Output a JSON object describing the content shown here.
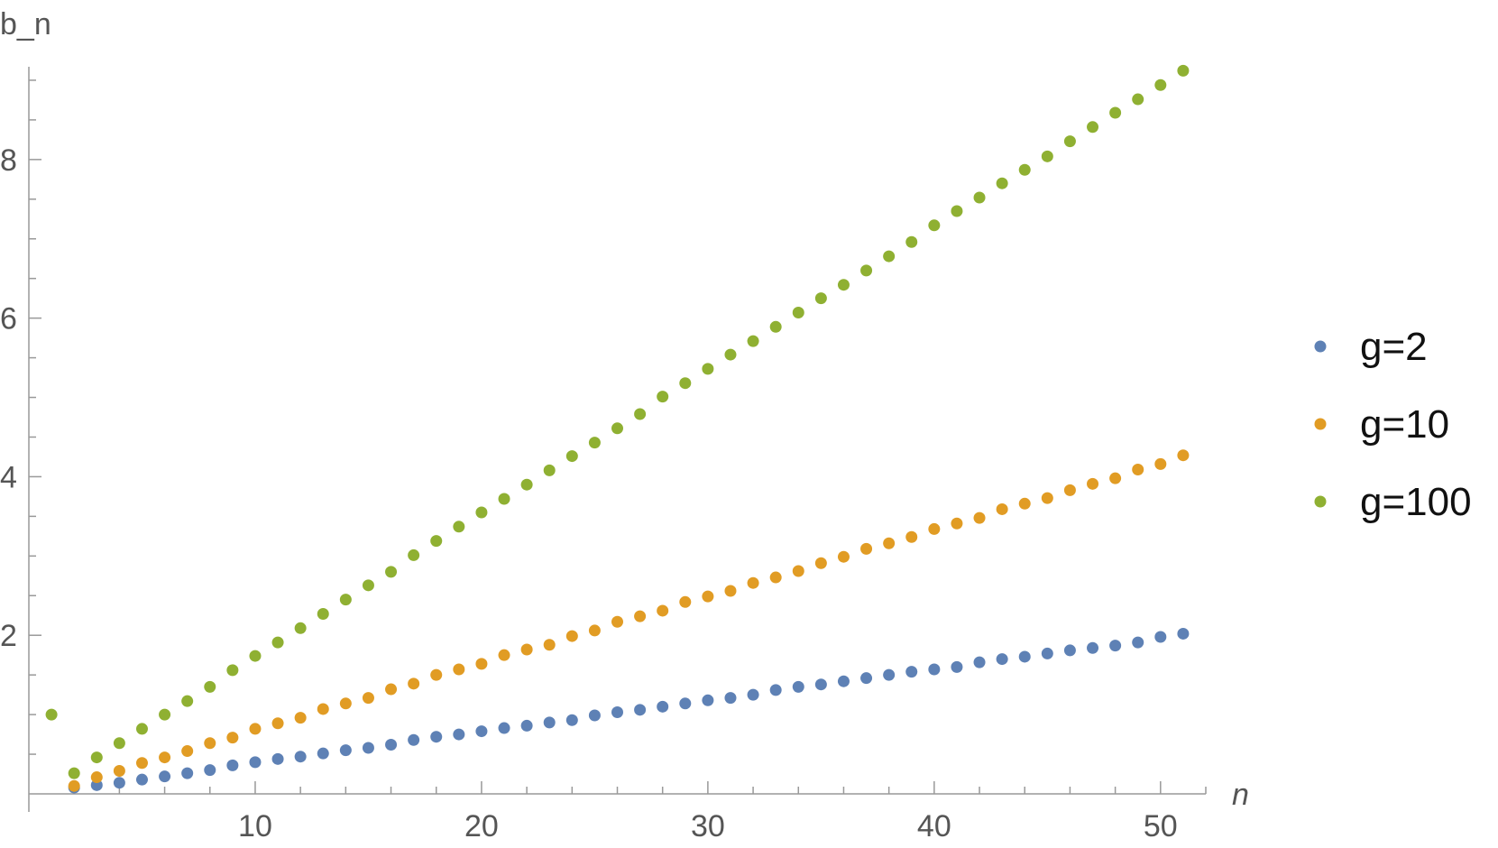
{
  "chart_data": {
    "type": "scatter",
    "xlabel": "n",
    "ylabel": "b_n",
    "xlim": [
      0,
      52
    ],
    "ylim": [
      0,
      9.5
    ],
    "x_ticks_major": [
      10,
      20,
      30,
      40,
      50
    ],
    "x_tick_labels": [
      "10",
      "20",
      "30",
      "40",
      "50"
    ],
    "y_ticks_major": [
      2,
      4,
      6,
      8
    ],
    "y_tick_labels": [
      "2",
      "4",
      "6",
      "8"
    ],
    "legend_position": "right",
    "series": [
      {
        "name": "g=2",
        "color": "#5e81b5",
        "points": [
          [
            2,
            0.08
          ],
          [
            3,
            0.11
          ],
          [
            4,
            0.14
          ],
          [
            5,
            0.18
          ],
          [
            6,
            0.22
          ],
          [
            7,
            0.26
          ],
          [
            8,
            0.3
          ],
          [
            9,
            0.36
          ],
          [
            10,
            0.4
          ],
          [
            11,
            0.44
          ],
          [
            12,
            0.47
          ],
          [
            13,
            0.51
          ],
          [
            14,
            0.55
          ],
          [
            15,
            0.58
          ],
          [
            16,
            0.62
          ],
          [
            17,
            0.68
          ],
          [
            18,
            0.72
          ],
          [
            19,
            0.75
          ],
          [
            20,
            0.79
          ],
          [
            21,
            0.83
          ],
          [
            22,
            0.86
          ],
          [
            23,
            0.9
          ],
          [
            24,
            0.93
          ],
          [
            25,
            0.99
          ],
          [
            26,
            1.03
          ],
          [
            27,
            1.06
          ],
          [
            28,
            1.1
          ],
          [
            29,
            1.14
          ],
          [
            30,
            1.18
          ],
          [
            31,
            1.21
          ],
          [
            32,
            1.25
          ],
          [
            33,
            1.31
          ],
          [
            34,
            1.35
          ],
          [
            35,
            1.38
          ],
          [
            36,
            1.42
          ],
          [
            37,
            1.46
          ],
          [
            38,
            1.5
          ],
          [
            39,
            1.54
          ],
          [
            40,
            1.57
          ],
          [
            41,
            1.6
          ],
          [
            42,
            1.66
          ],
          [
            43,
            1.7
          ],
          [
            44,
            1.73
          ],
          [
            45,
            1.77
          ],
          [
            46,
            1.81
          ],
          [
            47,
            1.84
          ],
          [
            48,
            1.87
          ],
          [
            49,
            1.91
          ],
          [
            50,
            1.98
          ],
          [
            51,
            2.02
          ]
        ]
      },
      {
        "name": "g=10",
        "color": "#e19c24",
        "points": [
          [
            2,
            0.1
          ],
          [
            3,
            0.21
          ],
          [
            4,
            0.29
          ],
          [
            5,
            0.39
          ],
          [
            6,
            0.46
          ],
          [
            7,
            0.54
          ],
          [
            8,
            0.64
          ],
          [
            9,
            0.71
          ],
          [
            10,
            0.82
          ],
          [
            11,
            0.89
          ],
          [
            12,
            0.96
          ],
          [
            13,
            1.07
          ],
          [
            14,
            1.14
          ],
          [
            15,
            1.21
          ],
          [
            16,
            1.32
          ],
          [
            17,
            1.39
          ],
          [
            18,
            1.5
          ],
          [
            19,
            1.57
          ],
          [
            20,
            1.64
          ],
          [
            21,
            1.75
          ],
          [
            22,
            1.82
          ],
          [
            23,
            1.88
          ],
          [
            24,
            1.99
          ],
          [
            25,
            2.06
          ],
          [
            26,
            2.17
          ],
          [
            27,
            2.24
          ],
          [
            28,
            2.31
          ],
          [
            29,
            2.42
          ],
          [
            30,
            2.49
          ],
          [
            31,
            2.56
          ],
          [
            32,
            2.66
          ],
          [
            33,
            2.73
          ],
          [
            34,
            2.81
          ],
          [
            35,
            2.91
          ],
          [
            36,
            2.99
          ],
          [
            37,
            3.09
          ],
          [
            38,
            3.16
          ],
          [
            39,
            3.24
          ],
          [
            40,
            3.34
          ],
          [
            41,
            3.41
          ],
          [
            42,
            3.48
          ],
          [
            43,
            3.59
          ],
          [
            44,
            3.66
          ],
          [
            45,
            3.73
          ],
          [
            46,
            3.83
          ],
          [
            47,
            3.91
          ],
          [
            48,
            3.98
          ],
          [
            49,
            4.09
          ],
          [
            50,
            4.16
          ],
          [
            51,
            4.27
          ]
        ]
      },
      {
        "name": "g=100",
        "color": "#8fb032",
        "points": [
          [
            1,
            1.0
          ],
          [
            2,
            0.26
          ],
          [
            3,
            0.46
          ],
          [
            4,
            0.64
          ],
          [
            5,
            0.82
          ],
          [
            6,
            1.0
          ],
          [
            7,
            1.17
          ],
          [
            8,
            1.35
          ],
          [
            9,
            1.56
          ],
          [
            10,
            1.74
          ],
          [
            11,
            1.91
          ],
          [
            12,
            2.09
          ],
          [
            13,
            2.27
          ],
          [
            14,
            2.45
          ],
          [
            15,
            2.63
          ],
          [
            16,
            2.8
          ],
          [
            17,
            3.01
          ],
          [
            18,
            3.19
          ],
          [
            19,
            3.37
          ],
          [
            20,
            3.55
          ],
          [
            21,
            3.72
          ],
          [
            22,
            3.9
          ],
          [
            23,
            4.08
          ],
          [
            24,
            4.26
          ],
          [
            25,
            4.43
          ],
          [
            26,
            4.61
          ],
          [
            27,
            4.79
          ],
          [
            28,
            5.01
          ],
          [
            29,
            5.18
          ],
          [
            30,
            5.36
          ],
          [
            31,
            5.54
          ],
          [
            32,
            5.71
          ],
          [
            33,
            5.89
          ],
          [
            34,
            6.07
          ],
          [
            35,
            6.25
          ],
          [
            36,
            6.42
          ],
          [
            37,
            6.6
          ],
          [
            38,
            6.78
          ],
          [
            39,
            6.96
          ],
          [
            40,
            7.17
          ],
          [
            41,
            7.35
          ],
          [
            42,
            7.52
          ],
          [
            43,
            7.7
          ],
          [
            44,
            7.87
          ],
          [
            45,
            8.04
          ],
          [
            46,
            8.23
          ],
          [
            47,
            8.41
          ],
          [
            48,
            8.59
          ],
          [
            49,
            8.76
          ],
          [
            50,
            8.94
          ],
          [
            51,
            9.12
          ]
        ]
      }
    ]
  }
}
